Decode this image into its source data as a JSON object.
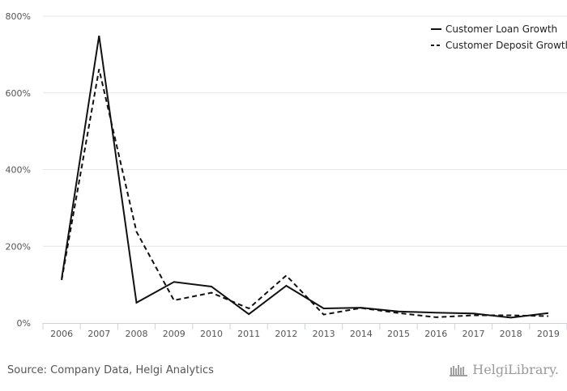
{
  "source_text": "Source: Company Data, Helgi Analytics",
  "brand": {
    "name": "HelgiLibrary.",
    "icon": "library-logo-icon"
  },
  "colors": {
    "line": "#111111",
    "grid": "#e6e6e6",
    "axis": "#c9d3e3"
  },
  "chart_data": {
    "type": "line",
    "categories": [
      "2006",
      "2007",
      "2008",
      "2009",
      "2010",
      "2011",
      "2012",
      "2013",
      "2014",
      "2015",
      "2016",
      "2017",
      "2018",
      "2019"
    ],
    "y_ticks": [
      0,
      200,
      400,
      600,
      800
    ],
    "y_tick_labels": [
      "0%",
      "200%",
      "400%",
      "600%",
      "800%"
    ],
    "ylim": [
      0,
      800
    ],
    "grid": true,
    "legend_position": "top-right",
    "series": [
      {
        "name": "Customer Loan Growth",
        "style": "solid",
        "values": [
          115,
          749,
          53,
          107,
          95,
          23,
          97,
          38,
          40,
          30,
          27,
          25,
          14,
          26
        ]
      },
      {
        "name": "Customer Deposit Growth",
        "style": "dashed",
        "values": [
          112,
          662,
          238,
          59,
          79,
          38,
          124,
          22,
          39,
          26,
          15,
          20,
          20,
          18
        ]
      }
    ]
  }
}
